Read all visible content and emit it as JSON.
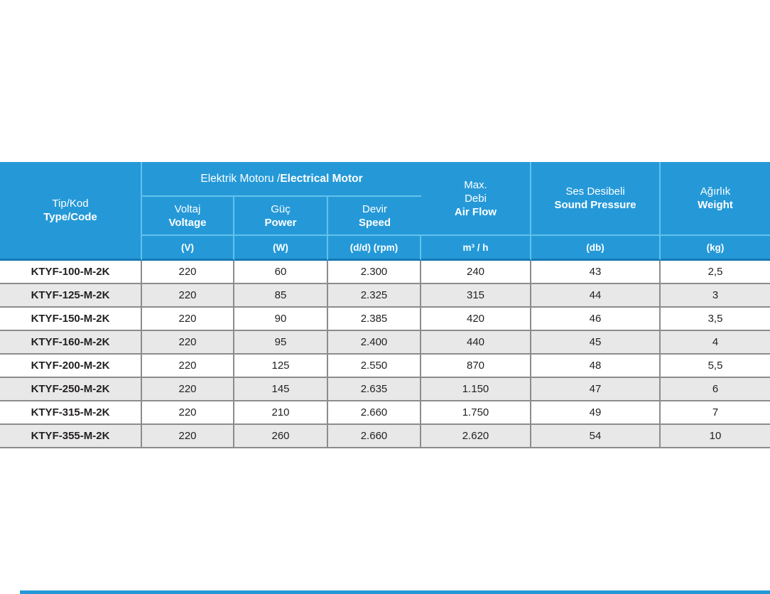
{
  "colors": {
    "header_blue": "#2599d8",
    "header_divider": "#62c2ec",
    "header_dark_edge": "#1879b4",
    "grid_line": "#8c8c8c",
    "row_alt": "#e8e8e8",
    "text_dark": "#221f20"
  },
  "table": {
    "header": {
      "tip_kod": {
        "line1": "Tip/Kod",
        "line2": "Type/Code"
      },
      "group": {
        "regular": "Elektrik Motoru / ",
        "bold": "Electrical Motor"
      },
      "voltaj": {
        "line1": "Voltaj",
        "line2": "Voltage",
        "unit": "(V)"
      },
      "guc": {
        "line1": "Güç",
        "line2": "Power",
        "unit": "(W)"
      },
      "devir": {
        "line1": "Devir",
        "line2": "Speed",
        "unit": "(d/d) (rpm)"
      },
      "debi": {
        "line1": "Max.",
        "line2": "Debi",
        "line3": "Air Flow",
        "unit": "m³ / h"
      },
      "ses": {
        "line1": "Ses Desibeli",
        "line2": "Sound Pressure",
        "unit": "(db)"
      },
      "agirlik": {
        "line1": "Ağırlık",
        "line2": "Weight",
        "unit": "(kg)"
      }
    },
    "rows": [
      {
        "code": "KTYF-100-M-2K",
        "voltage": "220",
        "power": "60",
        "speed": "2.300",
        "airflow": "240",
        "sound": "43",
        "weight": "2,5"
      },
      {
        "code": "KTYF-125-M-2K",
        "voltage": "220",
        "power": "85",
        "speed": "2.325",
        "airflow": "315",
        "sound": "44",
        "weight": "3"
      },
      {
        "code": "KTYF-150-M-2K",
        "voltage": "220",
        "power": "90",
        "speed": "2.385",
        "airflow": "420",
        "sound": "46",
        "weight": "3,5"
      },
      {
        "code": "KTYF-160-M-2K",
        "voltage": "220",
        "power": "95",
        "speed": "2.400",
        "airflow": "440",
        "sound": "45",
        "weight": "4"
      },
      {
        "code": "KTYF-200-M-2K",
        "voltage": "220",
        "power": "125",
        "speed": "2.550",
        "airflow": "870",
        "sound": "48",
        "weight": "5,5"
      },
      {
        "code": "KTYF-250-M-2K",
        "voltage": "220",
        "power": "145",
        "speed": "2.635",
        "airflow": "1.150",
        "sound": "47",
        "weight": "6"
      },
      {
        "code": "KTYF-315-M-2K",
        "voltage": "220",
        "power": "210",
        "speed": "2.660",
        "airflow": "1.750",
        "sound": "49",
        "weight": "7"
      },
      {
        "code": "KTYF-355-M-2K",
        "voltage": "220",
        "power": "260",
        "speed": "2.660",
        "airflow": "2.620",
        "sound": "54",
        "weight": "10"
      }
    ]
  }
}
